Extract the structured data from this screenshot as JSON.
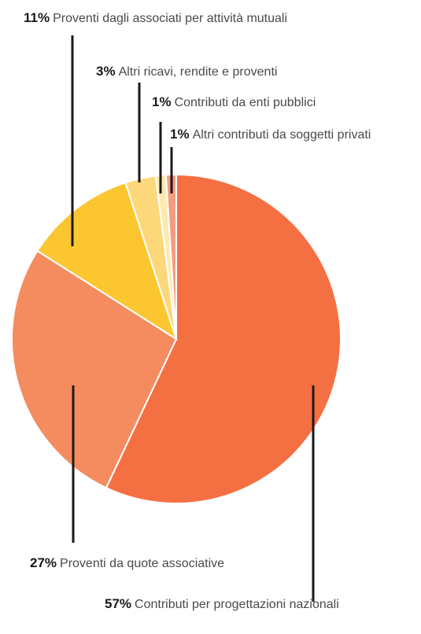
{
  "chart_data": {
    "type": "pie",
    "start_angle_deg": 0,
    "direction": "clockwise",
    "slices": [
      {
        "label": "Contributi per progettazioni nazionali",
        "value": 57,
        "value_label": "57%",
        "color": "#f47043"
      },
      {
        "label": "Proventi da quote associative",
        "value": 27,
        "value_label": "27%",
        "color": "#f58c5f"
      },
      {
        "label": "Proventi dagli associati per attività mutuali",
        "value": 11,
        "value_label": "11%",
        "color": "#fbc62f"
      },
      {
        "label": "Altri ricavi, rendite e proventi",
        "value": 3,
        "value_label": "3%",
        "color": "#fdd87a"
      },
      {
        "label": "Contributi da enti pubblici",
        "value": 1,
        "value_label": "1%",
        "color": "#feeab0"
      },
      {
        "label": "Altri contributi da soggetti privati",
        "value": 1,
        "value_label": "1%",
        "color": "#f39c82"
      }
    ]
  }
}
